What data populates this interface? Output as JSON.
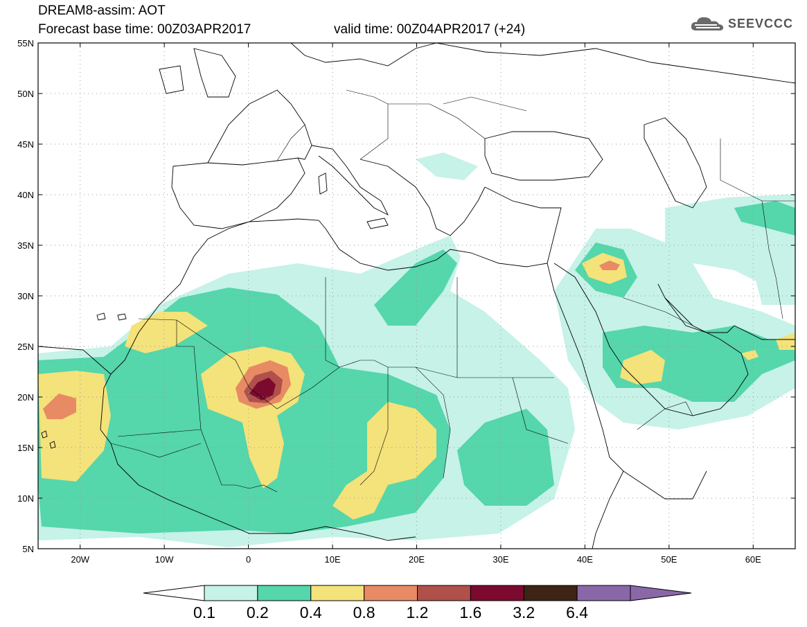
{
  "header": {
    "line1": "DREAM8-assim: AOT",
    "line2a": "Forecast base time: 00Z03APR2017",
    "line2b": "valid time: 00Z04APR2017 (+24)"
  },
  "logo": {
    "text": "SEEVCCC",
    "icon": "cloud-logo-icon"
  },
  "map": {
    "lon_range": [
      -25,
      65
    ],
    "lat_range": [
      5,
      55
    ],
    "lat_ticks": [
      "5N",
      "10N",
      "15N",
      "20N",
      "25N",
      "30N",
      "35N",
      "40N",
      "45N",
      "50N",
      "55N"
    ],
    "lon_ticks": [
      "20W",
      "10W",
      "0",
      "10E",
      "20E",
      "30E",
      "40E",
      "50E",
      "60E"
    ]
  },
  "colorbar": {
    "levels": [
      "0.1",
      "0.2",
      "0.4",
      "0.8",
      "1.2",
      "1.6",
      "3.2",
      "6.4"
    ],
    "colors": [
      "#c6f2e8",
      "#55d6ab",
      "#f4e27a",
      "#e88a64",
      "#b0504a",
      "#7b0a2e",
      "#3d2414",
      "#8a68a8"
    ],
    "under_color": "#ffffff",
    "over_color": "#8a68a8"
  }
}
